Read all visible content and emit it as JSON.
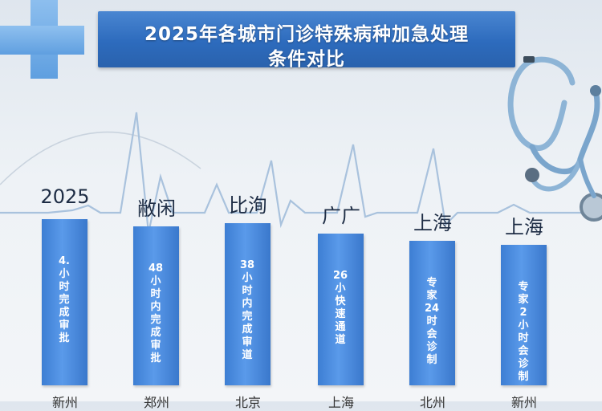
{
  "title": {
    "line1": "2025年各城市门诊特殊病种加急处理",
    "line2": "条件对比"
  },
  "chart_data": {
    "type": "bar",
    "title": "2025年各城市门诊特殊病种加急处理条件对比",
    "categories": [
      "2025",
      "敝闲",
      "比洵",
      "广广",
      "上海",
      "上海"
    ],
    "bar_texts": [
      "4.小时完成审批",
      "48小时内完成审批",
      "38小时内完成审道",
      "26小快速通道",
      "专家24时会诊制",
      "专家2小时会诊制"
    ],
    "values": [
      230,
      220,
      225,
      210,
      200,
      195
    ],
    "bottom_labels": [
      "新州",
      "郑州",
      "北京",
      "上海",
      "北州",
      "新州"
    ]
  }
}
